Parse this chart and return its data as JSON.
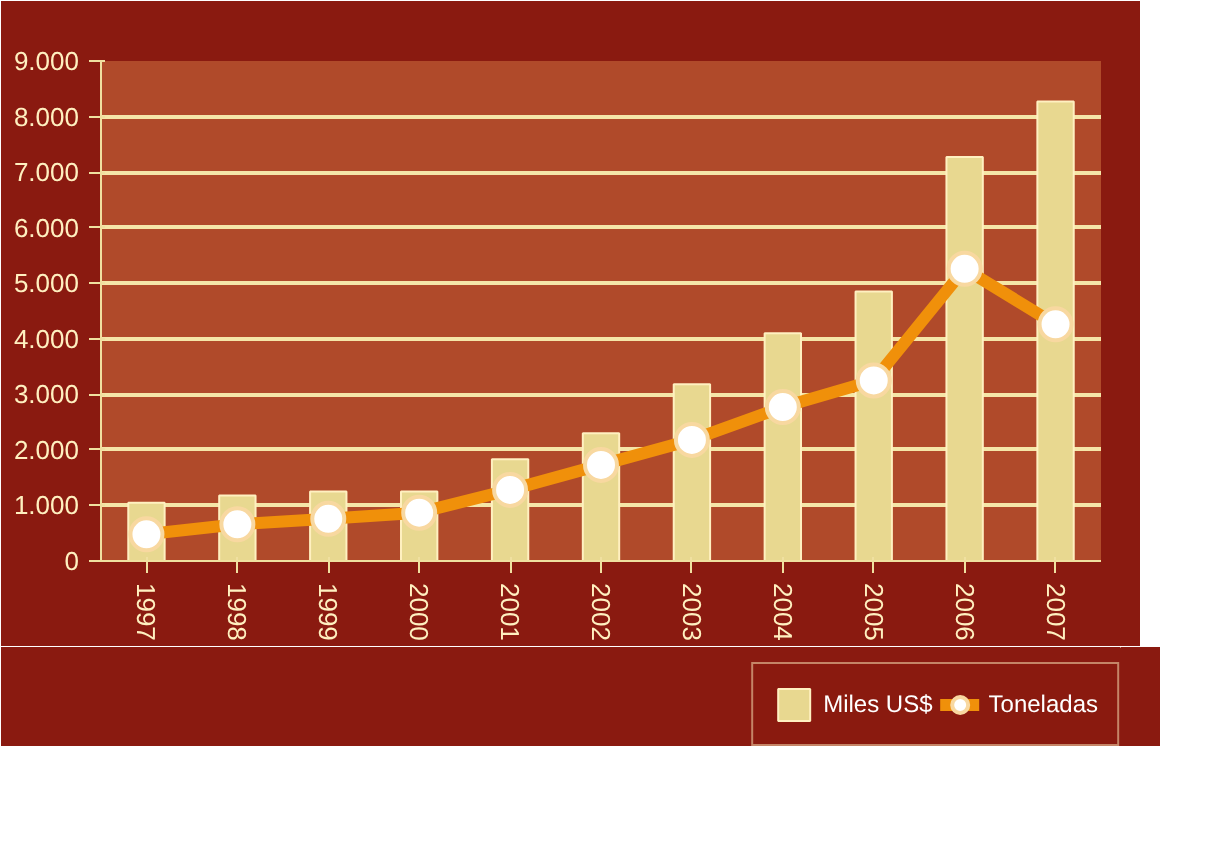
{
  "chart_data": {
    "type": "bar",
    "categories": [
      "1997",
      "1998",
      "1999",
      "2000",
      "2001",
      "2002",
      "2003",
      "2004",
      "2005",
      "2006",
      "2007"
    ],
    "series": [
      {
        "name": "Miles US$",
        "color": "#e8d890",
        "values": [
          1050,
          1180,
          1250,
          1250,
          1830,
          2300,
          3180,
          4100,
          4850,
          7270,
          8270
        ]
      },
      {
        "name": "Toneladas",
        "type": "line",
        "color": "#f0900a",
        "marker": "circle",
        "values": [
          480,
          660,
          760,
          870,
          1280,
          1730,
          2180,
          2770,
          3250,
          5260,
          4260
        ]
      }
    ],
    "ylim": [
      0,
      9000
    ],
    "yticks": [
      {
        "value": 0,
        "label": "0"
      },
      {
        "value": 1000,
        "label": "1.000"
      },
      {
        "value": 2000,
        "label": "2.000"
      },
      {
        "value": 3000,
        "label": "3.000"
      },
      {
        "value": 4000,
        "label": "4.000"
      },
      {
        "value": 5000,
        "label": "5.000"
      },
      {
        "value": 6000,
        "label": "6.000"
      },
      {
        "value": 7000,
        "label": "7.000"
      },
      {
        "value": 8000,
        "label": "8.000"
      },
      {
        "value": 9000,
        "label": "9.000"
      }
    ],
    "grid": "y",
    "legend": "bottom right"
  }
}
